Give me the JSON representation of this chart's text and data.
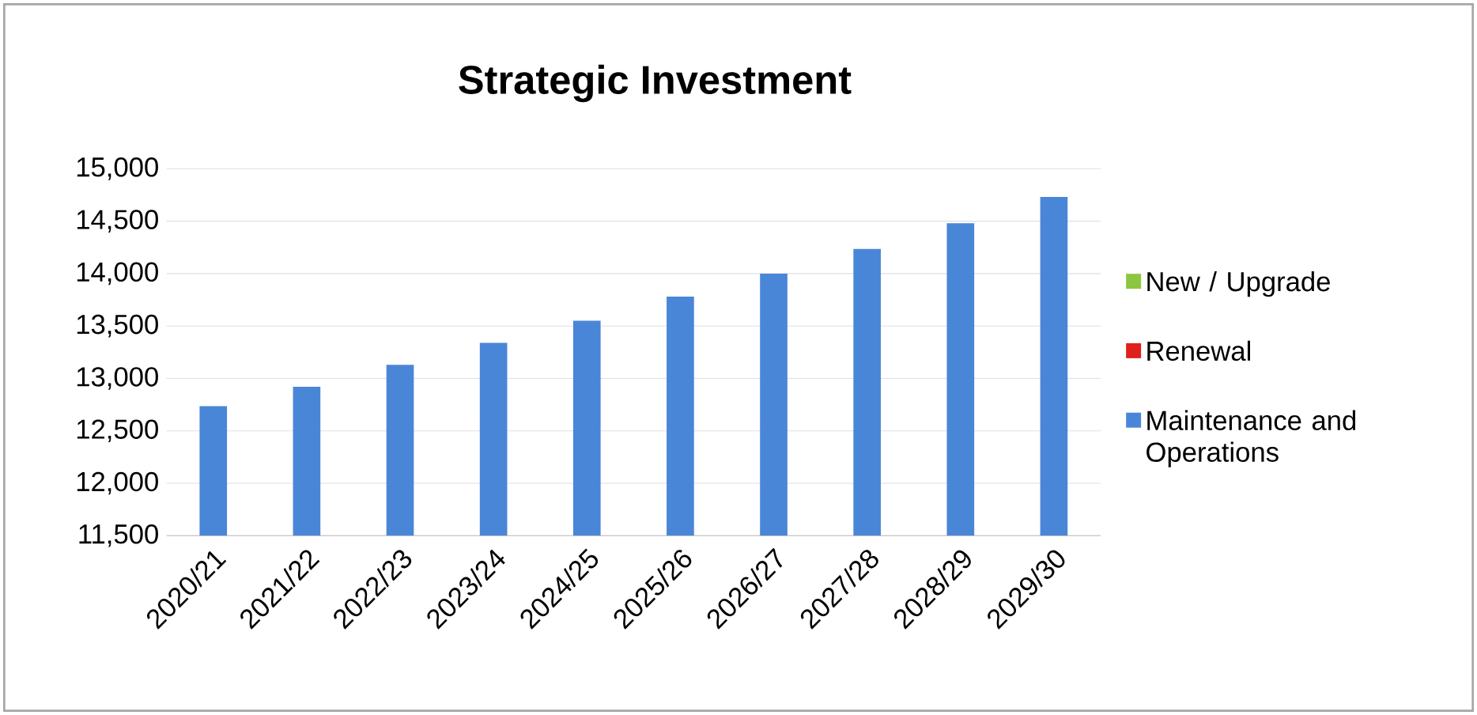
{
  "chart_data": {
    "type": "bar",
    "title": "Strategic Investment",
    "stacked": true,
    "categories": [
      "2020/21",
      "2021/22",
      "2022/23",
      "2023/24",
      "2024/25",
      "2025/26",
      "2026/27",
      "2027/28",
      "2028/29",
      "2029/30"
    ],
    "series": [
      {
        "name": "Maintenance and Operations",
        "color": "#4a86d8",
        "values": [
          12735,
          12920,
          13130,
          13340,
          13550,
          13780,
          14000,
          14235,
          14480,
          14730
        ]
      },
      {
        "name": "Renewal",
        "color": "#e0201b",
        "values": [
          null,
          null,
          null,
          null,
          null,
          null,
          null,
          null,
          null,
          null
        ]
      },
      {
        "name": "New / Upgrade",
        "color": "#8cc63f",
        "values": [
          null,
          null,
          null,
          null,
          null,
          null,
          null,
          null,
          null,
          null
        ]
      }
    ],
    "ylim": [
      11500,
      15000
    ],
    "yticks": [
      {
        "value": 11500,
        "label": "11,500"
      },
      {
        "value": 12000,
        "label": "12,000"
      },
      {
        "value": 12500,
        "label": "12,500"
      },
      {
        "value": 13000,
        "label": "13,000"
      },
      {
        "value": 13500,
        "label": "13,500"
      },
      {
        "value": 14000,
        "label": "14,000"
      },
      {
        "value": 14500,
        "label": "14,500"
      },
      {
        "value": 15000,
        "label": "15,000"
      }
    ],
    "grid": "y",
    "legend": "right"
  }
}
